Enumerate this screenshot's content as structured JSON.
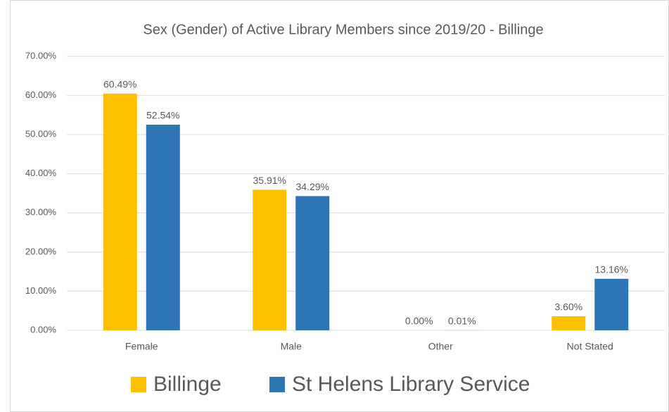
{
  "chart_data": {
    "type": "bar",
    "title": "Sex (Gender) of Active Library Members since 2019/20 - Billinge",
    "categories": [
      "Female",
      "Male",
      "Other",
      "Not Stated"
    ],
    "series": [
      {
        "name": "Billinge",
        "color": "#ffc000",
        "values": [
          60.49,
          35.91,
          0,
          3.6
        ],
        "value_labels": [
          "60.49%",
          "35.91%",
          "0.00%",
          "3.60%"
        ]
      },
      {
        "name": "St Helens Library Service",
        "color": "#2e75b6",
        "values": [
          52.54,
          34.29,
          0.01,
          13.16
        ],
        "value_labels": [
          "52.54%",
          "34.29%",
          "0.01%",
          "13.16%"
        ]
      }
    ],
    "ylim": [
      0,
      70
    ],
    "yticks": [
      {
        "value": 0,
        "label": "0.00%"
      },
      {
        "value": 10,
        "label": "10.00%"
      },
      {
        "value": 20,
        "label": "20.00%"
      },
      {
        "value": 30,
        "label": "30.00%"
      },
      {
        "value": 40,
        "label": "40.00%"
      },
      {
        "value": 50,
        "label": "50.00%"
      },
      {
        "value": 60,
        "label": "60.00%"
      },
      {
        "value": 70,
        "label": "70.00%"
      }
    ],
    "grid": true,
    "legend": "bottom"
  }
}
